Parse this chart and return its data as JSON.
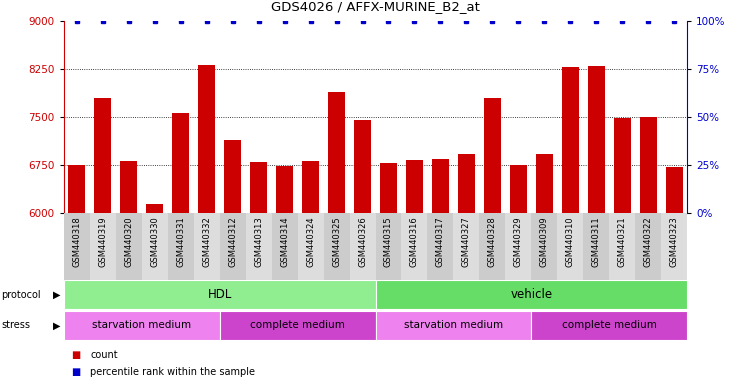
{
  "title": "GDS4026 / AFFX-MURINE_B2_at",
  "samples": [
    "GSM440318",
    "GSM440319",
    "GSM440320",
    "GSM440330",
    "GSM440331",
    "GSM440332",
    "GSM440312",
    "GSM440313",
    "GSM440314",
    "GSM440324",
    "GSM440325",
    "GSM440326",
    "GSM440315",
    "GSM440316",
    "GSM440317",
    "GSM440327",
    "GSM440328",
    "GSM440329",
    "GSM440309",
    "GSM440310",
    "GSM440311",
    "GSM440321",
    "GSM440322",
    "GSM440323"
  ],
  "counts": [
    6750,
    7800,
    6820,
    6150,
    7570,
    8320,
    7150,
    6800,
    6740,
    6820,
    7900,
    7450,
    6790,
    6830,
    6840,
    6920,
    7800,
    6750,
    6920,
    8290,
    8300,
    7480,
    7500,
    6720
  ],
  "percentiles": [
    100,
    100,
    100,
    100,
    100,
    100,
    100,
    100,
    100,
    100,
    100,
    100,
    100,
    100,
    100,
    100,
    100,
    100,
    100,
    100,
    100,
    100,
    100,
    100
  ],
  "bar_color": "#cc0000",
  "percentile_color": "#0000cc",
  "ylim_left": [
    6000,
    9000
  ],
  "ylim_right": [
    0,
    100
  ],
  "yticks_left": [
    6000,
    6750,
    7500,
    8250,
    9000
  ],
  "yticks_right": [
    0,
    25,
    50,
    75,
    100
  ],
  "protocol_groups": [
    {
      "label": "HDL",
      "start": 0,
      "end": 11,
      "color": "#90ee90"
    },
    {
      "label": "vehicle",
      "start": 12,
      "end": 23,
      "color": "#66dd66"
    }
  ],
  "stress_groups": [
    {
      "label": "starvation medium",
      "start": 0,
      "end": 5,
      "color": "#ee82ee"
    },
    {
      "label": "complete medium",
      "start": 6,
      "end": 11,
      "color": "#cc44cc"
    },
    {
      "label": "starvation medium",
      "start": 12,
      "end": 17,
      "color": "#ee82ee"
    },
    {
      "label": "complete medium",
      "start": 18,
      "end": 23,
      "color": "#cc44cc"
    }
  ],
  "legend_count_color": "#cc0000",
  "legend_percentile_color": "#0000cc"
}
